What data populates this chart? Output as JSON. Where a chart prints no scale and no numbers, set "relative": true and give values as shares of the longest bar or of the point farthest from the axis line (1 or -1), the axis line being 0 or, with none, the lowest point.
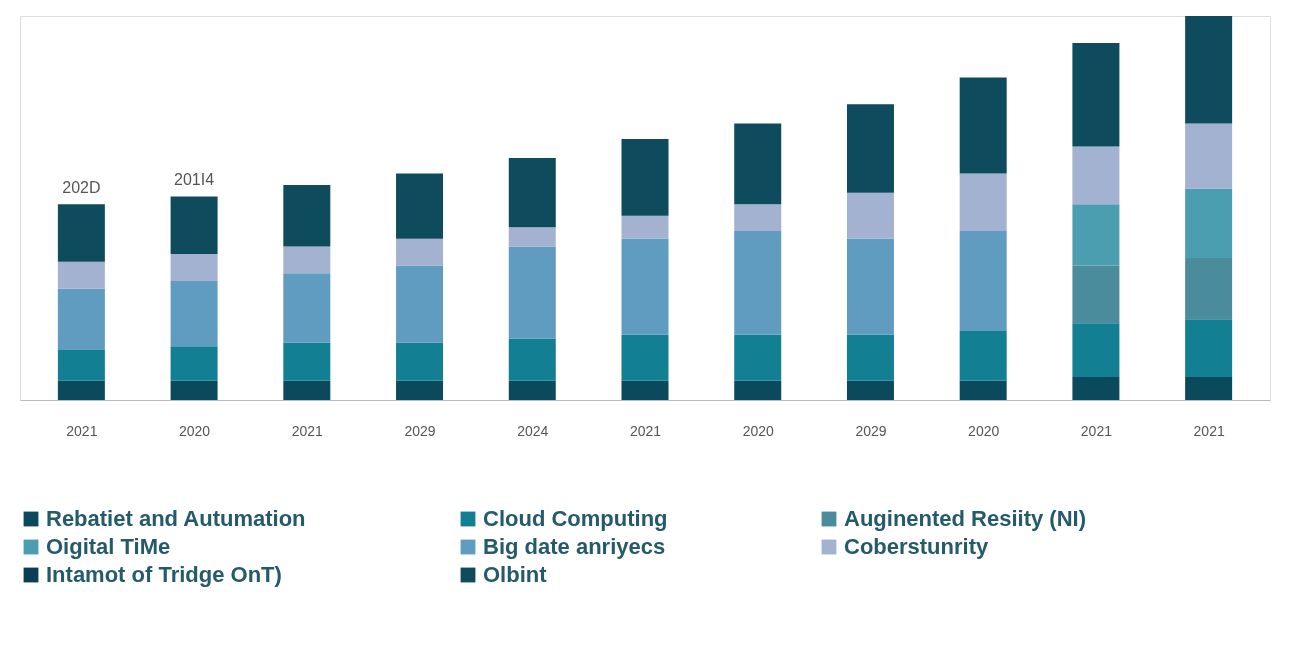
{
  "chart_data": {
    "type": "bar",
    "stacked": true,
    "relative": true,
    "legend": "bottom",
    "categories": [
      "2021",
      "2020",
      "2021",
      "2029",
      "2024",
      "2021",
      "2020",
      "2029",
      "2020",
      "2021",
      "2021"
    ],
    "annotations": [
      "202D",
      "201I4"
    ],
    "series": [
      {
        "name": "Rebatiet and Autumation",
        "color": "#0b4a5c",
        "values": [
          0.05,
          0.05,
          0.05,
          0.05,
          0.05,
          0.05,
          0.05,
          0.05,
          0.05,
          0.06,
          0.06
        ]
      },
      {
        "name": "Cloud Computing",
        "color": "#137f93",
        "values": [
          0.08,
          0.09,
          0.1,
          0.1,
          0.11,
          0.12,
          0.12,
          0.12,
          0.13,
          0.14,
          0.15
        ]
      },
      {
        "name": "Auginented Resiity (NI)",
        "color": "#4a8c9c",
        "values": [
          null,
          null,
          null,
          null,
          null,
          null,
          null,
          null,
          null,
          0.15,
          0.16
        ]
      },
      {
        "name": "Oigital TiMe",
        "color": "#4b9db0",
        "values": [
          null,
          null,
          null,
          null,
          null,
          null,
          null,
          null,
          null,
          0.16,
          0.18
        ]
      },
      {
        "name": "Big date anriyecs",
        "color": "#5f9cc0",
        "values": [
          0.16,
          0.17,
          0.18,
          0.2,
          0.24,
          0.25,
          0.27,
          0.25,
          0.26,
          null,
          null
        ]
      },
      {
        "name": "Coberstunrity",
        "color": "#a3b2d0",
        "values": [
          0.07,
          0.07,
          0.07,
          0.07,
          0.05,
          0.06,
          0.07,
          0.12,
          0.15,
          0.15,
          0.17
        ]
      },
      {
        "name": "Intamot of Tridge OnT)",
        "color": "#0a3e54",
        "values": [
          null,
          null,
          null,
          null,
          null,
          null,
          null,
          null,
          null,
          null,
          null
        ]
      },
      {
        "name": "Olbint",
        "color": "#0d4b5d",
        "values": [
          0.15,
          0.15,
          0.16,
          0.17,
          0.18,
          0.2,
          0.21,
          0.23,
          0.25,
          0.27,
          0.28
        ]
      }
    ]
  }
}
